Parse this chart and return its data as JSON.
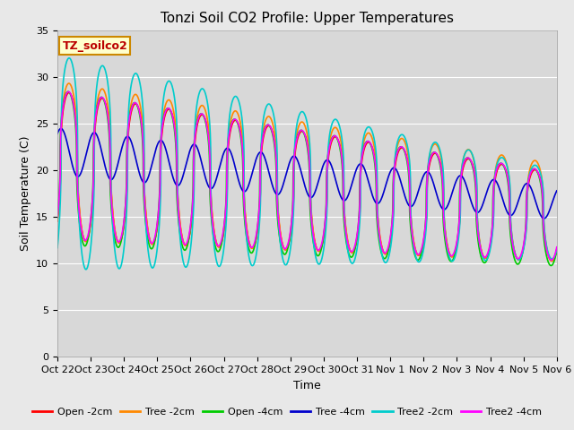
{
  "title": "Tonzi Soil CO2 Profile: Upper Temperatures",
  "xlabel": "Time",
  "ylabel": "Soil Temperature (C)",
  "ylim": [
    0,
    35
  ],
  "background_color": "#e8e8e8",
  "plot_bg": "#d8d8d8",
  "box_label": "TZ_soilco2",
  "box_facecolor": "#ffffcc",
  "box_edgecolor": "#cc8800",
  "series": [
    {
      "label": "Open -2cm",
      "color": "#ff0000",
      "lw": 1.2
    },
    {
      "label": "Tree -2cm",
      "color": "#ff8800",
      "lw": 1.2
    },
    {
      "label": "Open -4cm",
      "color": "#00cc00",
      "lw": 1.2
    },
    {
      "label": "Tree -4cm",
      "color": "#0000cc",
      "lw": 1.2
    },
    {
      "label": "Tree2 -2cm",
      "color": "#00cccc",
      "lw": 1.2
    },
    {
      "label": "Tree2 -4cm",
      "color": "#ff00ff",
      "lw": 1.2
    }
  ],
  "xtick_labels": [
    "Oct 22",
    "Oct 23",
    "Oct 24",
    "Oct 25",
    "Oct 26",
    "Oct 27",
    "Oct 28",
    "Oct 29",
    "Oct 30",
    "Oct 31",
    "Nov 1",
    "Nov 2",
    "Nov 3",
    "Nov 4",
    "Nov 5",
    "Nov 6"
  ],
  "ytick_vals": [
    0,
    5,
    10,
    15,
    20,
    25,
    30,
    35
  ],
  "grid_color": "#ffffff",
  "title_fontsize": 11,
  "axis_fontsize": 9,
  "tick_fontsize": 8,
  "legend_fontsize": 8
}
